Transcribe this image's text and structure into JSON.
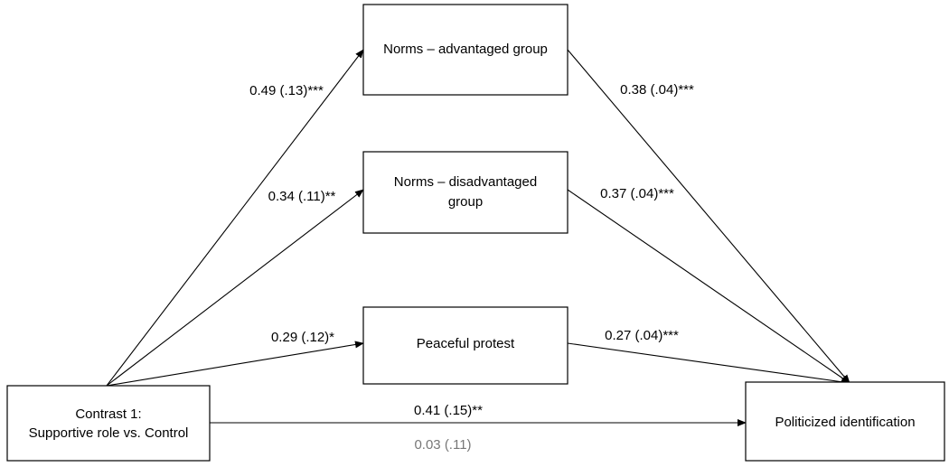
{
  "nodes": [
    {
      "label": [
        "Contrast 1:",
        "Supportive role vs. Control"
      ]
    },
    {
      "label": [
        "Norms – advantaged group"
      ]
    },
    {
      "label": [
        "Norms – disadvantaged",
        "group"
      ]
    },
    {
      "label": [
        "Peaceful protest"
      ]
    },
    {
      "label": [
        "Politicized identification"
      ]
    }
  ],
  "edges": [
    {
      "label": "0.49 (.13)***"
    },
    {
      "label": "0.34 (.11)**"
    },
    {
      "label": "0.29 (.12)*"
    },
    {
      "label": "0.38 (.04)***"
    },
    {
      "label": "0.37 (.04)***"
    },
    {
      "label": "0.27 (.04)***"
    },
    {
      "label": "0.41 (.15)**"
    },
    {
      "label": "0.03 (.11)"
    }
  ]
}
